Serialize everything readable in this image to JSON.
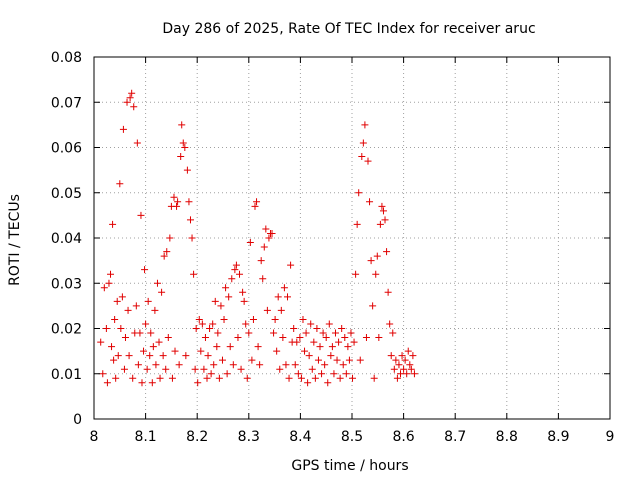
{
  "chart_data": {
    "type": "scatter",
    "title": "Day 286 of 2025, Rate Of TEC Index for receiver aruc",
    "xlabel": "GPS time / hours",
    "ylabel": "ROTI / TECUs",
    "xlim": [
      8,
      9
    ],
    "ylim": [
      0,
      0.08
    ],
    "x_ticks": [
      "8",
      "8.1",
      "8.2",
      "8.3",
      "8.4",
      "8.5",
      "8.6",
      "8.7",
      "8.8",
      "8.9",
      "9"
    ],
    "y_ticks": [
      "0",
      "0.01",
      "0.02",
      "0.03",
      "0.04",
      "0.05",
      "0.06",
      "0.07",
      "0.08"
    ],
    "grid": true,
    "marker": "plus",
    "series": [
      {
        "color": "#e00000",
        "points": [
          [
            8.013,
            0.017
          ],
          [
            8.017,
            0.01
          ],
          [
            8.02,
            0.029
          ],
          [
            8.024,
            0.02
          ],
          [
            8.026,
            0.008
          ],
          [
            8.029,
            0.03
          ],
          [
            8.032,
            0.032
          ],
          [
            8.034,
            0.016
          ],
          [
            8.036,
            0.043
          ],
          [
            8.038,
            0.013
          ],
          [
            8.04,
            0.022
          ],
          [
            8.042,
            0.009
          ],
          [
            8.045,
            0.026
          ],
          [
            8.047,
            0.014
          ],
          [
            8.05,
            0.052
          ],
          [
            8.052,
            0.02
          ],
          [
            8.055,
            0.027
          ],
          [
            8.057,
            0.064
          ],
          [
            8.059,
            0.011
          ],
          [
            8.061,
            0.018
          ],
          [
            8.064,
            0.07
          ],
          [
            8.066,
            0.024
          ],
          [
            8.068,
            0.014
          ],
          [
            8.07,
            0.071
          ],
          [
            8.073,
            0.072
          ],
          [
            8.075,
            0.009
          ],
          [
            8.077,
            0.069
          ],
          [
            8.079,
            0.019
          ],
          [
            8.082,
            0.025
          ],
          [
            8.084,
            0.061
          ],
          [
            8.086,
            0.012
          ],
          [
            8.089,
            0.019
          ],
          [
            8.091,
            0.045
          ],
          [
            8.093,
            0.008
          ],
          [
            8.096,
            0.015
          ],
          [
            8.098,
            0.033
          ],
          [
            8.1,
            0.021
          ],
          [
            8.103,
            0.011
          ],
          [
            8.105,
            0.026
          ],
          [
            8.108,
            0.014
          ],
          [
            8.11,
            0.019
          ],
          [
            8.113,
            0.008
          ],
          [
            8.115,
            0.016
          ],
          [
            8.118,
            0.024
          ],
          [
            8.12,
            0.012
          ],
          [
            8.123,
            0.03
          ],
          [
            8.126,
            0.017
          ],
          [
            8.128,
            0.009
          ],
          [
            8.131,
            0.028
          ],
          [
            8.134,
            0.014
          ],
          [
            8.136,
            0.036
          ],
          [
            8.139,
            0.011
          ],
          [
            8.141,
            0.037
          ],
          [
            8.144,
            0.018
          ],
          [
            8.147,
            0.04
          ],
          [
            8.15,
            0.047
          ],
          [
            8.152,
            0.009
          ],
          [
            8.155,
            0.049
          ],
          [
            8.157,
            0.015
          ],
          [
            8.16,
            0.047
          ],
          [
            8.162,
            0.048
          ],
          [
            8.165,
            0.012
          ],
          [
            8.168,
            0.058
          ],
          [
            8.17,
            0.065
          ],
          [
            8.173,
            0.061
          ],
          [
            8.176,
            0.06
          ],
          [
            8.178,
            0.014
          ],
          [
            8.181,
            0.055
          ],
          [
            8.184,
            0.048
          ],
          [
            8.187,
            0.044
          ],
          [
            8.19,
            0.04
          ],
          [
            8.193,
            0.032
          ],
          [
            8.196,
            0.011
          ],
          [
            8.198,
            0.02
          ],
          [
            8.201,
            0.008
          ],
          [
            8.204,
            0.022
          ],
          [
            8.207,
            0.015
          ],
          [
            8.21,
            0.021
          ],
          [
            8.213,
            0.011
          ],
          [
            8.216,
            0.018
          ],
          [
            8.219,
            0.009
          ],
          [
            8.221,
            0.014
          ],
          [
            8.224,
            0.02
          ],
          [
            8.227,
            0.01
          ],
          [
            8.23,
            0.021
          ],
          [
            8.232,
            0.012
          ],
          [
            8.235,
            0.026
          ],
          [
            8.238,
            0.016
          ],
          [
            8.24,
            0.019
          ],
          [
            8.243,
            0.009
          ],
          [
            8.246,
            0.025
          ],
          [
            8.249,
            0.013
          ],
          [
            8.252,
            0.022
          ],
          [
            8.255,
            0.029
          ],
          [
            8.258,
            0.01
          ],
          [
            8.261,
            0.027
          ],
          [
            8.264,
            0.016
          ],
          [
            8.267,
            0.031
          ],
          [
            8.27,
            0.012
          ],
          [
            8.273,
            0.033
          ],
          [
            8.276,
            0.034
          ],
          [
            8.279,
            0.018
          ],
          [
            8.282,
            0.032
          ],
          [
            8.285,
            0.011
          ],
          [
            8.288,
            0.028
          ],
          [
            8.291,
            0.026
          ],
          [
            8.294,
            0.021
          ],
          [
            8.297,
            0.009
          ],
          [
            8.3,
            0.019
          ],
          [
            8.303,
            0.039
          ],
          [
            8.306,
            0.013
          ],
          [
            8.309,
            0.022
          ],
          [
            8.312,
            0.047
          ],
          [
            8.315,
            0.048
          ],
          [
            8.318,
            0.016
          ],
          [
            8.321,
            0.012
          ],
          [
            8.324,
            0.035
          ],
          [
            8.327,
            0.031
          ],
          [
            8.33,
            0.038
          ],
          [
            8.333,
            0.042
          ],
          [
            8.336,
            0.024
          ],
          [
            8.339,
            0.04
          ],
          [
            8.342,
            0.041
          ],
          [
            8.345,
            0.041
          ],
          [
            8.348,
            0.019
          ],
          [
            8.351,
            0.022
          ],
          [
            8.354,
            0.015
          ],
          [
            8.357,
            0.027
          ],
          [
            8.36,
            0.011
          ],
          [
            8.363,
            0.024
          ],
          [
            8.366,
            0.018
          ],
          [
            8.369,
            0.029
          ],
          [
            8.372,
            0.012
          ],
          [
            8.375,
            0.027
          ],
          [
            8.378,
            0.009
          ],
          [
            8.381,
            0.034
          ],
          [
            8.384,
            0.017
          ],
          [
            8.387,
            0.02
          ],
          [
            8.39,
            0.012
          ],
          [
            8.393,
            0.017
          ],
          [
            8.396,
            0.01
          ],
          [
            8.399,
            0.018
          ],
          [
            8.402,
            0.009
          ],
          [
            8.405,
            0.022
          ],
          [
            8.408,
            0.015
          ],
          [
            8.411,
            0.019
          ],
          [
            8.414,
            0.008
          ],
          [
            8.417,
            0.014
          ],
          [
            8.42,
            0.021
          ],
          [
            8.423,
            0.011
          ],
          [
            8.426,
            0.017
          ],
          [
            8.429,
            0.009
          ],
          [
            8.432,
            0.02
          ],
          [
            8.435,
            0.013
          ],
          [
            8.438,
            0.016
          ],
          [
            8.441,
            0.01
          ],
          [
            8.444,
            0.019
          ],
          [
            8.447,
            0.012
          ],
          [
            8.45,
            0.018
          ],
          [
            8.453,
            0.008
          ],
          [
            8.456,
            0.021
          ],
          [
            8.459,
            0.014
          ],
          [
            8.462,
            0.016
          ],
          [
            8.465,
            0.01
          ],
          [
            8.468,
            0.019
          ],
          [
            8.471,
            0.013
          ],
          [
            8.474,
            0.017
          ],
          [
            8.477,
            0.009
          ],
          [
            8.48,
            0.02
          ],
          [
            8.483,
            0.012
          ],
          [
            8.486,
            0.018
          ],
          [
            8.489,
            0.01
          ],
          [
            8.492,
            0.016
          ],
          [
            8.495,
            0.013
          ],
          [
            8.498,
            0.019
          ],
          [
            8.501,
            0.009
          ],
          [
            8.504,
            0.017
          ],
          [
            8.507,
            0.032
          ],
          [
            8.51,
            0.043
          ],
          [
            8.513,
            0.05
          ],
          [
            8.516,
            0.013
          ],
          [
            8.519,
            0.058
          ],
          [
            8.522,
            0.061
          ],
          [
            8.525,
            0.065
          ],
          [
            8.528,
            0.018
          ],
          [
            8.531,
            0.057
          ],
          [
            8.534,
            0.048
          ],
          [
            8.537,
            0.035
          ],
          [
            8.54,
            0.025
          ],
          [
            8.543,
            0.009
          ],
          [
            8.546,
            0.032
          ],
          [
            8.549,
            0.036
          ],
          [
            8.552,
            0.018
          ],
          [
            8.555,
            0.043
          ],
          [
            8.558,
            0.047
          ],
          [
            8.561,
            0.046
          ],
          [
            8.564,
            0.044
          ],
          [
            8.567,
            0.037
          ],
          [
            8.57,
            0.028
          ],
          [
            8.573,
            0.021
          ],
          [
            8.576,
            0.014
          ],
          [
            8.579,
            0.019
          ],
          [
            8.582,
            0.011
          ],
          [
            8.585,
            0.013
          ],
          [
            8.588,
            0.009
          ],
          [
            8.591,
            0.012
          ],
          [
            8.594,
            0.01
          ],
          [
            8.597,
            0.014
          ],
          [
            8.6,
            0.011
          ],
          [
            8.603,
            0.013
          ],
          [
            8.606,
            0.01
          ],
          [
            8.609,
            0.015
          ],
          [
            8.612,
            0.012
          ],
          [
            8.615,
            0.011
          ],
          [
            8.618,
            0.014
          ],
          [
            8.621,
            0.01
          ]
        ]
      }
    ]
  }
}
